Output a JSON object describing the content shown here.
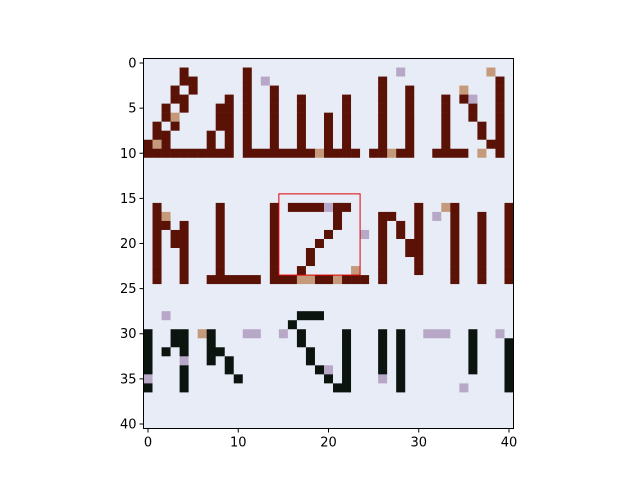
{
  "figure": {
    "x_ticks": [
      "0",
      "10",
      "20",
      "30",
      "40"
    ],
    "y_ticks": [
      "0",
      "5",
      "10",
      "15",
      "20",
      "25",
      "30",
      "35",
      "40"
    ]
  },
  "image_content": {
    "description_rows": [
      "row 1 (rows ~0-10): partial maroon serif capitals",
      "row 2 (rows ~15-24): partial maroon capitals",
      "row 3 (rows ~28-36): partial black/dark capitals"
    ],
    "colors": {
      "background": "#e8ecf6",
      "maroon": "#5a1206",
      "dark": "#0c1410",
      "tan": "#c49a7a",
      "lavender": "#b8a8c8",
      "highlight_box": "#e00000"
    }
  },
  "highlight_box": {
    "x0": 15,
    "y0": 15,
    "x1": 24,
    "y1": 24
  }
}
